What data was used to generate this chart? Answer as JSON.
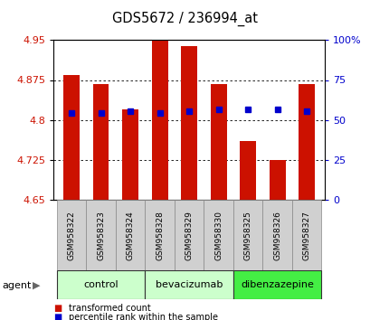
{
  "title": "GDS5672 / 236994_at",
  "samples": [
    "GSM958322",
    "GSM958323",
    "GSM958324",
    "GSM958328",
    "GSM958329",
    "GSM958330",
    "GSM958325",
    "GSM958326",
    "GSM958327"
  ],
  "red_bar_values": [
    4.885,
    4.868,
    4.82,
    4.95,
    4.938,
    4.868,
    4.76,
    4.725,
    4.868
  ],
  "blue_dot_values": [
    4.813,
    4.813,
    4.816,
    4.813,
    4.816,
    4.82,
    4.82,
    4.82,
    4.816
  ],
  "bar_base": 4.65,
  "ylim": [
    4.65,
    4.95
  ],
  "yticks_left": [
    4.65,
    4.725,
    4.8,
    4.875,
    4.95
  ],
  "yticks_left_labels": [
    "4.65",
    "4.725",
    "4.8",
    "4.875",
    "4.95"
  ],
  "yticks_right_vals": [
    0,
    25,
    50,
    75,
    100
  ],
  "yticks_right_labels": [
    "0",
    "25",
    "50",
    "75",
    "100%"
  ],
  "groups": [
    {
      "label": "control",
      "indices": [
        0,
        1,
        2
      ],
      "color": "#ccffcc"
    },
    {
      "label": "bevacizumab",
      "indices": [
        3,
        4,
        5
      ],
      "color": "#ccffcc"
    },
    {
      "label": "dibenzazepine",
      "indices": [
        6,
        7,
        8
      ],
      "color": "#44ee44"
    }
  ],
  "bar_color": "#cc1100",
  "dot_color": "#0000cc",
  "plot_bg": "#ffffff",
  "left_label_color": "#cc1100",
  "right_label_color": "#0000cc",
  "agent_label": "agent",
  "legend_items": [
    {
      "label": "transformed count",
      "color": "#cc1100"
    },
    {
      "label": "percentile rank within the sample",
      "color": "#0000cc"
    }
  ]
}
